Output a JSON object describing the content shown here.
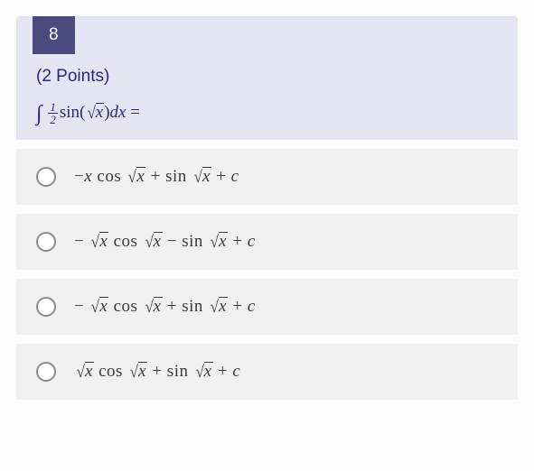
{
  "question": {
    "number": "8",
    "points_label": "(2 Points)",
    "equation": {
      "integral_sym": "∫",
      "frac_num": "1",
      "frac_den": "2",
      "fn": "sin",
      "sqrt_surd": "√",
      "sqrt_radicand": "x",
      "close": ")",
      "dx": "dx",
      "equals": " = "
    },
    "styling": {
      "header_bg": "#e4e4f2",
      "qnum_bg": "#4a4a7f",
      "qnum_color": "#ffffff",
      "accent_text": "#29297c",
      "option_bg": "#f0f0f0",
      "radio_border": "#8b8b8b",
      "body_font": "Segoe UI",
      "math_font": "Cambria Math"
    }
  },
  "options": [
    {
      "id": "opt-a",
      "selected": false,
      "parts": {
        "p1": "−",
        "p2": "x",
        "p3": " cos ",
        "sqrt1": "x",
        "p4": " + sin ",
        "sqrt2": "x",
        "p5": " + ",
        "p6": "c"
      },
      "latex": "-x \\cos\\sqrt{x} + \\sin\\sqrt{x} + c"
    },
    {
      "id": "opt-b",
      "selected": false,
      "parts": {
        "p1": "− ",
        "sqrt0": "x",
        "p3": " cos ",
        "sqrt1": "x",
        "p4": " − sin ",
        "sqrt2": "x",
        "p5": " + ",
        "p6": "c"
      },
      "latex": "-\\sqrt{x}\\cos\\sqrt{x} - \\sin\\sqrt{x} + c"
    },
    {
      "id": "opt-c",
      "selected": false,
      "parts": {
        "p1": "− ",
        "sqrt0": "x",
        "p3": " cos ",
        "sqrt1": "x",
        "p4": " + sin ",
        "sqrt2": "x",
        "p5": " + ",
        "p6": "c"
      },
      "latex": "-\\sqrt{x}\\cos\\sqrt{x} + \\sin\\sqrt{x} + c"
    },
    {
      "id": "opt-d",
      "selected": false,
      "parts": {
        "sqrt0": "x",
        "p3": " cos ",
        "sqrt1": "x",
        "p4": " + sin ",
        "sqrt2": "x",
        "p5": " + ",
        "p6": "c"
      },
      "latex": "\\sqrt{x}\\cos\\sqrt{x} + \\sin\\sqrt{x} + c"
    }
  ],
  "surd": "√"
}
